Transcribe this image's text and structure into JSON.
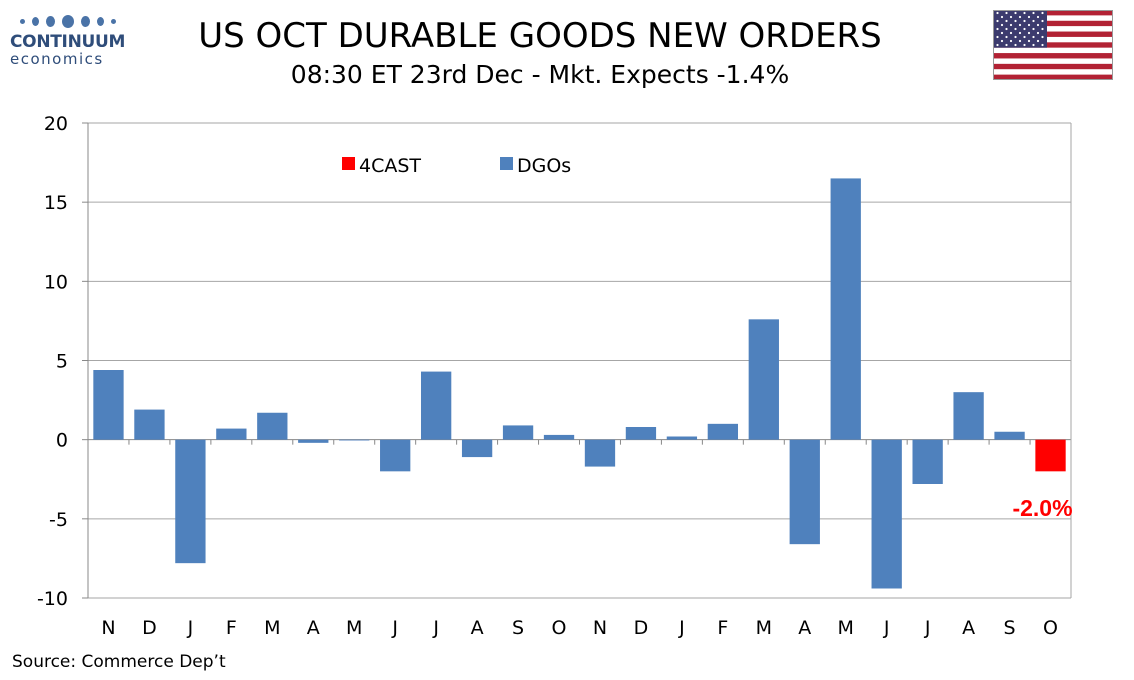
{
  "logo": {
    "name": "CONTINUUM",
    "sub": "economics"
  },
  "header": {
    "title": "US OCT DURABLE GOODS NEW ORDERS",
    "subtitle": "08:30 ET 23rd Dec - Mkt. Expects -1.4%"
  },
  "source": "Source: Commerce Dep’t",
  "colors": {
    "dgos": "#4f81bd",
    "forecast": "#ff0000"
  },
  "chart_data": {
    "type": "bar",
    "title": "US OCT DURABLE GOODS NEW ORDERS",
    "xlabel": "",
    "ylabel": "",
    "ylim": [
      -10,
      20
    ],
    "yticks": [
      -10,
      -5,
      0,
      5,
      10,
      15,
      20
    ],
    "grid": true,
    "legend_position": "top-left",
    "categories": [
      "N",
      "D",
      "J",
      "F",
      "M",
      "A",
      "M",
      "J",
      "J",
      "A",
      "S",
      "O",
      "N",
      "D",
      "J",
      "F",
      "M",
      "A",
      "M",
      "J",
      "J",
      "A",
      "S",
      "O"
    ],
    "series": [
      {
        "name": "4CAST",
        "color": "#ff0000",
        "values": [
          null,
          null,
          null,
          null,
          null,
          null,
          null,
          null,
          null,
          null,
          null,
          null,
          null,
          null,
          null,
          null,
          null,
          null,
          null,
          null,
          null,
          null,
          null,
          -2.0
        ]
      },
      {
        "name": "DGOs",
        "color": "#4f81bd",
        "values": [
          4.4,
          1.9,
          -7.8,
          0.7,
          1.7,
          -0.2,
          0.0,
          -2.0,
          4.3,
          -1.1,
          0.9,
          0.3,
          -1.7,
          0.8,
          0.2,
          1.0,
          7.6,
          -6.6,
          16.5,
          -9.4,
          -2.8,
          3.0,
          0.5,
          null
        ]
      }
    ],
    "annotations": [
      {
        "text": "-2.0%",
        "category_index": 23,
        "color": "#ff0000"
      }
    ]
  }
}
